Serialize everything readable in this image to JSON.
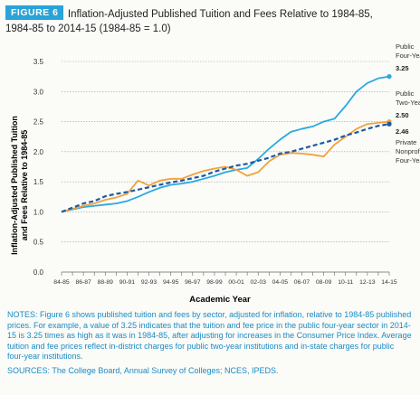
{
  "header": {
    "badge": "FIGURE 6",
    "title_line1": "Inflation-Adjusted Published Tuition and Fees Relative to 1984-85,",
    "title_line2": "1984-85 to 2014-15 (1984-85 = 1.0)"
  },
  "chart_data": {
    "type": "line",
    "xlabel": "Academic Year",
    "ylabel": "Inflation-Adjusted Published Tuition and Fees Relative to 1984-85",
    "ylabel_line1": "Inflation-Adjusted Published Tuition",
    "ylabel_line2": "and Fees Relative to 1984-85",
    "ylim": [
      0,
      3.5
    ],
    "yticks": [
      "0.0",
      "0.5",
      "1.0",
      "1.5",
      "2.0",
      "2.5",
      "3.0",
      "3.5"
    ],
    "grid": true,
    "x": [
      "84-85",
      "85-86",
      "86-87",
      "87-88",
      "88-89",
      "89-90",
      "90-91",
      "91-92",
      "92-93",
      "93-94",
      "94-95",
      "95-96",
      "96-97",
      "97-98",
      "98-99",
      "99-00",
      "00-01",
      "01-02",
      "02-03",
      "03-04",
      "04-05",
      "05-06",
      "06-07",
      "07-08",
      "08-09",
      "09-10",
      "10-11",
      "11-12",
      "12-13",
      "13-14",
      "14-15"
    ],
    "xtick_labels": [
      "84-85",
      "86-87",
      "88-89",
      "90-91",
      "92-93",
      "94-95",
      "96-97",
      "98-99",
      "00-01",
      "02-03",
      "04-05",
      "06-07",
      "08-09",
      "10-11",
      "12-13",
      "14-15"
    ],
    "series": [
      {
        "name": "Public Four-Year",
        "label_lines": [
          "Public",
          "Four-Year"
        ],
        "end_label": "3.25",
        "color": "#29a9e1",
        "style": "solid",
        "values": [
          1.0,
          1.04,
          1.08,
          1.1,
          1.12,
          1.14,
          1.18,
          1.25,
          1.33,
          1.4,
          1.45,
          1.47,
          1.5,
          1.55,
          1.6,
          1.66,
          1.7,
          1.73,
          1.88,
          2.05,
          2.2,
          2.33,
          2.38,
          2.42,
          2.5,
          2.55,
          2.76,
          3.0,
          3.14,
          3.22,
          3.25
        ]
      },
      {
        "name": "Public Two-Year",
        "label_lines": [
          "Public",
          "Two-Year"
        ],
        "end_label": "2.50",
        "color": "#f0a23e",
        "style": "solid",
        "values": [
          1.0,
          1.05,
          1.1,
          1.14,
          1.2,
          1.24,
          1.3,
          1.52,
          1.44,
          1.52,
          1.55,
          1.55,
          1.62,
          1.68,
          1.72,
          1.75,
          1.7,
          1.6,
          1.66,
          1.84,
          1.95,
          1.98,
          1.97,
          1.95,
          1.92,
          2.12,
          2.25,
          2.38,
          2.46,
          2.48,
          2.5
        ]
      },
      {
        "name": "Private Nonprofit Four-Year",
        "label_lines": [
          "Private",
          "Nonprofit",
          "Four-Year"
        ],
        "end_label": "2.46",
        "color": "#1c5aa3",
        "style": "dashed",
        "values": [
          1.0,
          1.07,
          1.14,
          1.18,
          1.26,
          1.3,
          1.33,
          1.37,
          1.41,
          1.45,
          1.49,
          1.52,
          1.56,
          1.6,
          1.67,
          1.72,
          1.77,
          1.8,
          1.85,
          1.9,
          1.97,
          2.0,
          2.05,
          2.1,
          2.15,
          2.2,
          2.27,
          2.32,
          2.38,
          2.43,
          2.46
        ]
      }
    ]
  },
  "notes": {
    "notes_text": "NOTES: Figure 6 shows published tuition and fees by sector, adjusted for inflation, relative to 1984-85 published prices. For example, a value of 3.25 indicates that the tuition and fee price in the public four-year sector in 2014-15 is 3.25 times as high as it was in 1984-85, after adjusting for increases in the Consumer Price Index. Average tuition and fee prices reflect in-district charges for public two-year institutions and in-state charges for public four-year institutions.",
    "sources_text": "SOURCES: The College Board, Annual Survey of Colleges; NCES, IPEDS."
  }
}
